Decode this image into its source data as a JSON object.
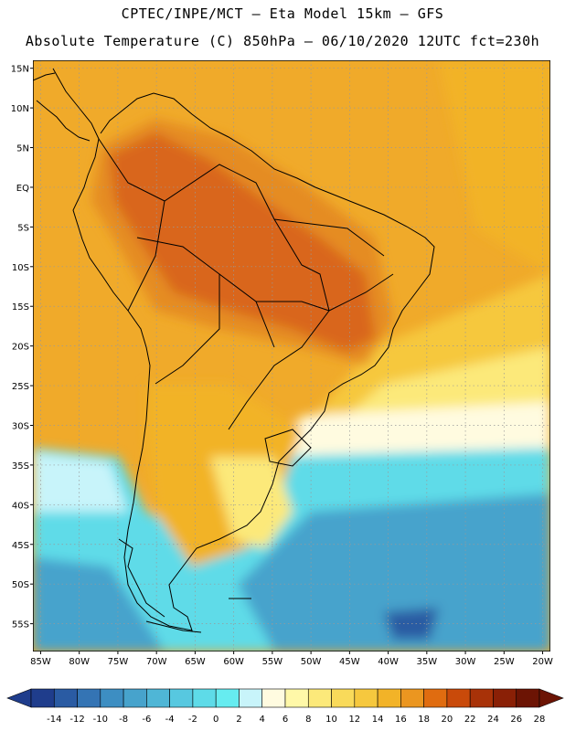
{
  "header": {
    "line1": "CPTEC/INPE/MCT –  Eta Model 15km – GFS",
    "line2": "Absolute Temperature (C) 850hPa – 06/10/2020 12UTC fct=230h"
  },
  "lat_labels": [
    "15N",
    "10N",
    "5N",
    "EQ",
    "5S",
    "10S",
    "15S",
    "20S",
    "25S",
    "30S",
    "35S",
    "40S",
    "45S",
    "50S",
    "55S"
  ],
  "lon_labels": [
    "85W",
    "80W",
    "75W",
    "70W",
    "65W",
    "60W",
    "55W",
    "50W",
    "45W",
    "40W",
    "35W",
    "30W",
    "25W",
    "20W"
  ],
  "colorbar": {
    "labels": [
      "-14",
      "-12",
      "-10",
      "-8",
      "-6",
      "-4",
      "-2",
      "0",
      "2",
      "4",
      "6",
      "8",
      "10",
      "12",
      "14",
      "16",
      "18",
      "20",
      "22",
      "24",
      "26",
      "28"
    ],
    "colors": [
      "#1f3d8c",
      "#2a5ba3",
      "#3474b4",
      "#3d8ec2",
      "#47a3cc",
      "#4fb6d6",
      "#57c8e0",
      "#5edbe8",
      "#66ecf0",
      "#c8f4fa",
      "#fffbe0",
      "#fff8a8",
      "#fce97a",
      "#f9da5a",
      "#f6c83e",
      "#f2b328",
      "#eb9620",
      "#e06c10",
      "#c94a0a",
      "#a83208",
      "#8a2006",
      "#6c1404"
    ]
  },
  "map": {
    "domain": {
      "lon_min": -86,
      "lon_max": -19,
      "lat_min": -58.5,
      "lat_max": 16
    },
    "colors": {
      "ocean_warm": "#f0aa2a",
      "land_hot": "#d9661a",
      "land_warm": "#e58c24",
      "subtropical": "#f6c83e",
      "mild": "#fce97a",
      "cool": "#fffbe0",
      "cold": "#5edbe8",
      "colder": "#47a3cc",
      "coldest": "#2a5ba3",
      "border": "#000000",
      "grid": "#aaaaaa"
    }
  }
}
